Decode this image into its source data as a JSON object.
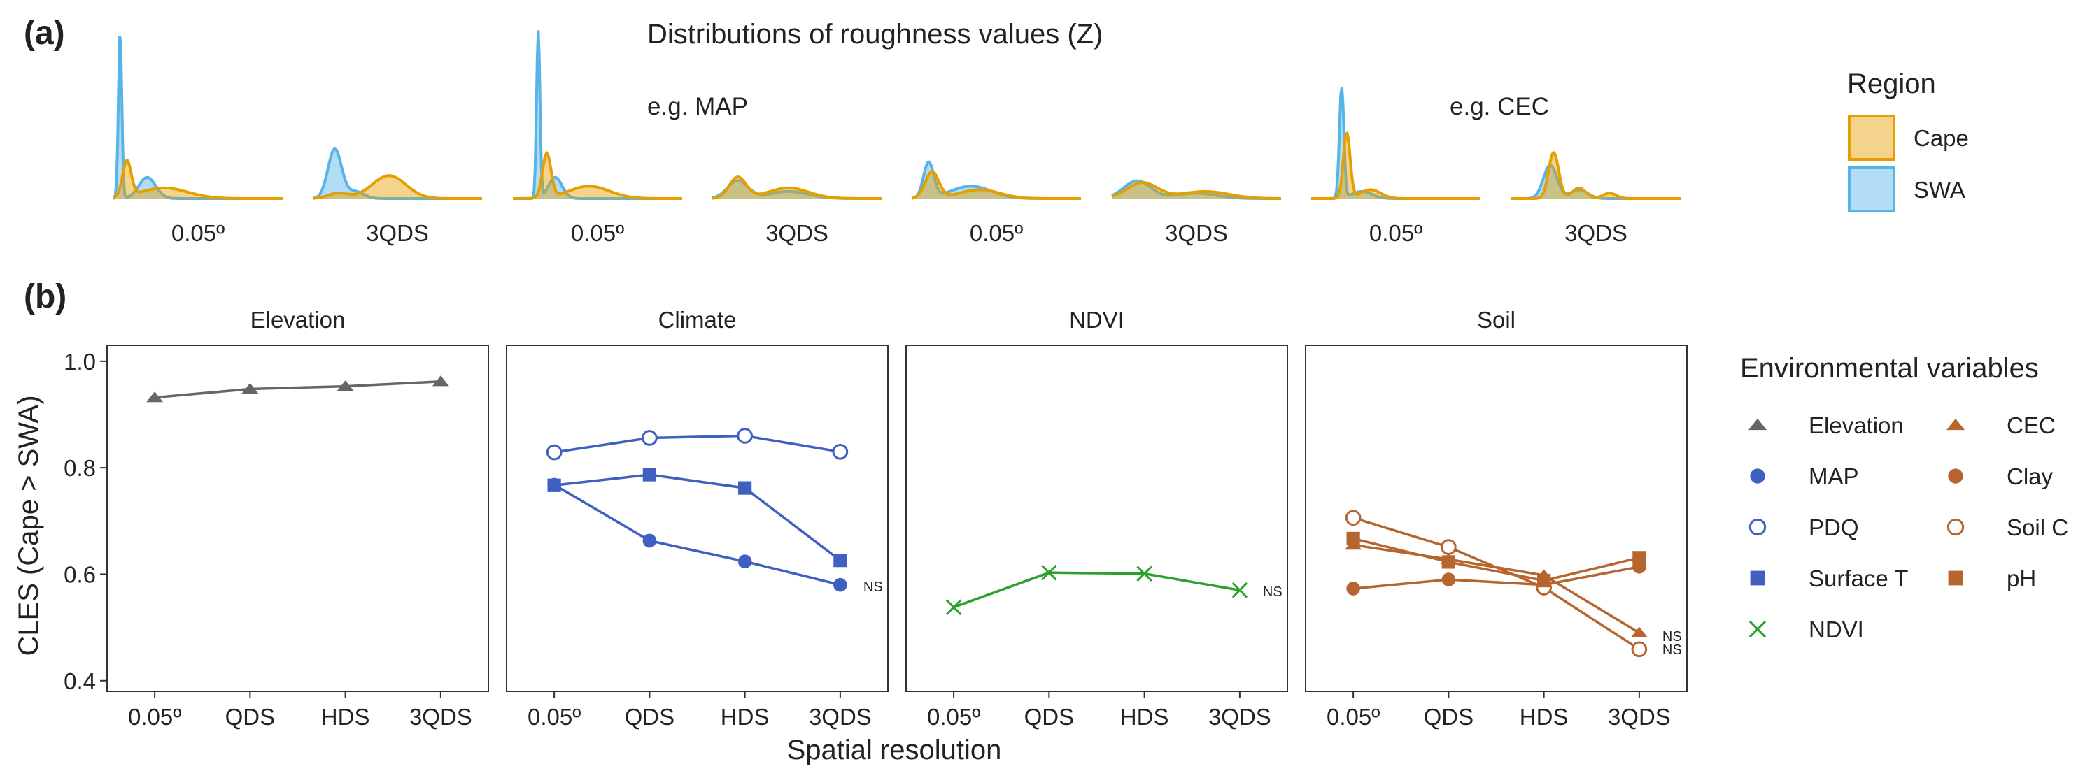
{
  "panel_labels": {
    "a": "(a)",
    "b": "(b)"
  },
  "panel_a": {
    "title": "Distributions of roughness values (Z)",
    "annotations": {
      "map": "e.g. MAP",
      "cec": "e.g. CEC"
    },
    "colors": {
      "Cape": "#E69F00",
      "SWA": "#56B4E9"
    },
    "legend": {
      "title": "Region",
      "items": [
        "Cape",
        "SWA"
      ]
    }
  },
  "chart_data": [
    {
      "type": "area",
      "description_role": "density curves",
      "group_labels": [
        "e.g. MAP",
        "e.g. CEC"
      ],
      "facets": [
        {
          "label": "0.05º",
          "SWA": [
            [
              0.04,
              0.95,
              0.01
            ],
            [
              0.2,
              0.12,
              0.05
            ]
          ],
          "Cape": [
            [
              0.08,
              0.2,
              0.025
            ],
            [
              0.3,
              0.06,
              0.14
            ]
          ]
        },
        {
          "label": "3QDS",
          "SWA": [
            [
              0.13,
              0.28,
              0.04
            ],
            [
              0.25,
              0.04,
              0.05
            ]
          ],
          "Cape": [
            [
              0.45,
              0.13,
              0.1
            ],
            [
              0.15,
              0.03,
              0.06
            ]
          ]
        },
        {
          "label": "0.05º",
          "SWA": [
            [
              0.15,
              0.95,
              0.01
            ],
            [
              0.25,
              0.12,
              0.04
            ]
          ],
          "Cape": [
            [
              0.2,
              0.25,
              0.025
            ],
            [
              0.45,
              0.07,
              0.12
            ]
          ]
        },
        {
          "label": "3QDS",
          "SWA": [
            [
              0.15,
              0.1,
              0.06
            ],
            [
              0.45,
              0.04,
              0.12
            ]
          ],
          "Cape": [
            [
              0.15,
              0.12,
              0.05
            ],
            [
              0.45,
              0.06,
              0.12
            ]
          ]
        },
        {
          "label": "0.05º",
          "SWA": [
            [
              0.1,
              0.2,
              0.03
            ],
            [
              0.35,
              0.07,
              0.12
            ]
          ],
          "Cape": [
            [
              0.12,
              0.15,
              0.04
            ],
            [
              0.4,
              0.05,
              0.12
            ]
          ]
        },
        {
          "label": "3QDS",
          "SWA": [
            [
              0.15,
              0.1,
              0.08
            ],
            [
              0.5,
              0.03,
              0.12
            ]
          ],
          "Cape": [
            [
              0.18,
              0.09,
              0.09
            ],
            [
              0.55,
              0.04,
              0.14
            ]
          ]
        },
        {
          "label": "0.05º",
          "SWA": [
            [
              0.18,
              0.63,
              0.013
            ],
            [
              0.3,
              0.04,
              0.06
            ]
          ],
          "Cape": [
            [
              0.21,
              0.37,
              0.02
            ],
            [
              0.35,
              0.05,
              0.06
            ]
          ]
        },
        {
          "label": "3QDS",
          "SWA": [
            [
              0.23,
              0.19,
              0.04
            ],
            [
              0.4,
              0.05,
              0.05
            ]
          ],
          "Cape": [
            [
              0.25,
              0.26,
              0.03
            ],
            [
              0.4,
              0.06,
              0.04
            ],
            [
              0.58,
              0.03,
              0.04
            ]
          ]
        }
      ]
    },
    {
      "type": "line",
      "title": "",
      "xlabel": "Spatial resolution",
      "ylabel": "CLES (Cape > SWA)",
      "categories": [
        "0.05º",
        "QDS",
        "HDS",
        "3QDS"
      ],
      "ylim": [
        0.38,
        1.03
      ],
      "yticks": [
        0.4,
        0.6,
        0.8,
        1.0
      ],
      "yticklabels": [
        "0.4",
        "0.6",
        "0.8",
        "1.0"
      ],
      "facets": [
        {
          "label": "Elevation",
          "series": [
            {
              "name": "Elevation",
              "marker": "triangle",
              "color": "#666666",
              "values": [
                0.932,
                0.948,
                0.953,
                0.962
              ]
            }
          ],
          "ns": []
        },
        {
          "label": "Climate",
          "series": [
            {
              "name": "MAP",
              "marker": "circle",
              "color": "#3F60C0",
              "values": [
                0.768,
                0.663,
                0.624,
                0.58
              ]
            },
            {
              "name": "PDQ",
              "marker": "open-circle",
              "color": "#3F60C0",
              "values": [
                0.829,
                0.856,
                0.86,
                0.83
              ]
            },
            {
              "name": "Surface T",
              "marker": "square",
              "color": "#3F60C0",
              "values": [
                0.767,
                0.787,
                0.762,
                0.626
              ]
            }
          ],
          "ns": [
            {
              "text": "NS",
              "y": 0.577
            }
          ]
        },
        {
          "label": "NDVI",
          "series": [
            {
              "name": "NDVI",
              "marker": "cross",
              "color": "#2CA02C",
              "values": [
                0.538,
                0.603,
                0.601,
                0.57
              ]
            }
          ],
          "ns": [
            {
              "text": "NS",
              "y": 0.568
            }
          ]
        },
        {
          "label": "Soil",
          "series": [
            {
              "name": "CEC",
              "marker": "triangle",
              "color": "#B5652D",
              "values": [
                0.655,
                0.628,
                0.598,
                0.49
              ]
            },
            {
              "name": "Clay",
              "marker": "circle",
              "color": "#B5652D",
              "values": [
                0.573,
                0.59,
                0.58,
                0.614
              ]
            },
            {
              "name": "Soil C",
              "marker": "open-circle",
              "color": "#B5652D",
              "values": [
                0.706,
                0.651,
                0.575,
                0.459
              ]
            },
            {
              "name": "pH",
              "marker": "square",
              "color": "#B5652D",
              "values": [
                0.667,
                0.623,
                0.588,
                0.631
              ]
            }
          ],
          "ns": [
            {
              "text": "NS",
              "y": 0.484
            },
            {
              "text": "NS",
              "y": 0.459
            }
          ]
        }
      ],
      "legend": {
        "title": "Environmental variables",
        "columns": [
          [
            {
              "name": "Elevation",
              "marker": "triangle",
              "color": "#666666"
            },
            {
              "name": "MAP",
              "marker": "circle",
              "color": "#3F60C0"
            },
            {
              "name": "PDQ",
              "marker": "open-circle",
              "color": "#3F60C0"
            },
            {
              "name": "Surface T",
              "marker": "square",
              "color": "#3F60C0"
            },
            {
              "name": "NDVI",
              "marker": "cross",
              "color": "#2CA02C"
            }
          ],
          [
            {
              "name": "CEC",
              "marker": "triangle",
              "color": "#B5652D"
            },
            {
              "name": "Clay",
              "marker": "circle",
              "color": "#B5652D"
            },
            {
              "name": "Soil C",
              "marker": "open-circle",
              "color": "#B5652D"
            },
            {
              "name": "pH",
              "marker": "square",
              "color": "#B5652D"
            }
          ]
        ]
      }
    }
  ]
}
